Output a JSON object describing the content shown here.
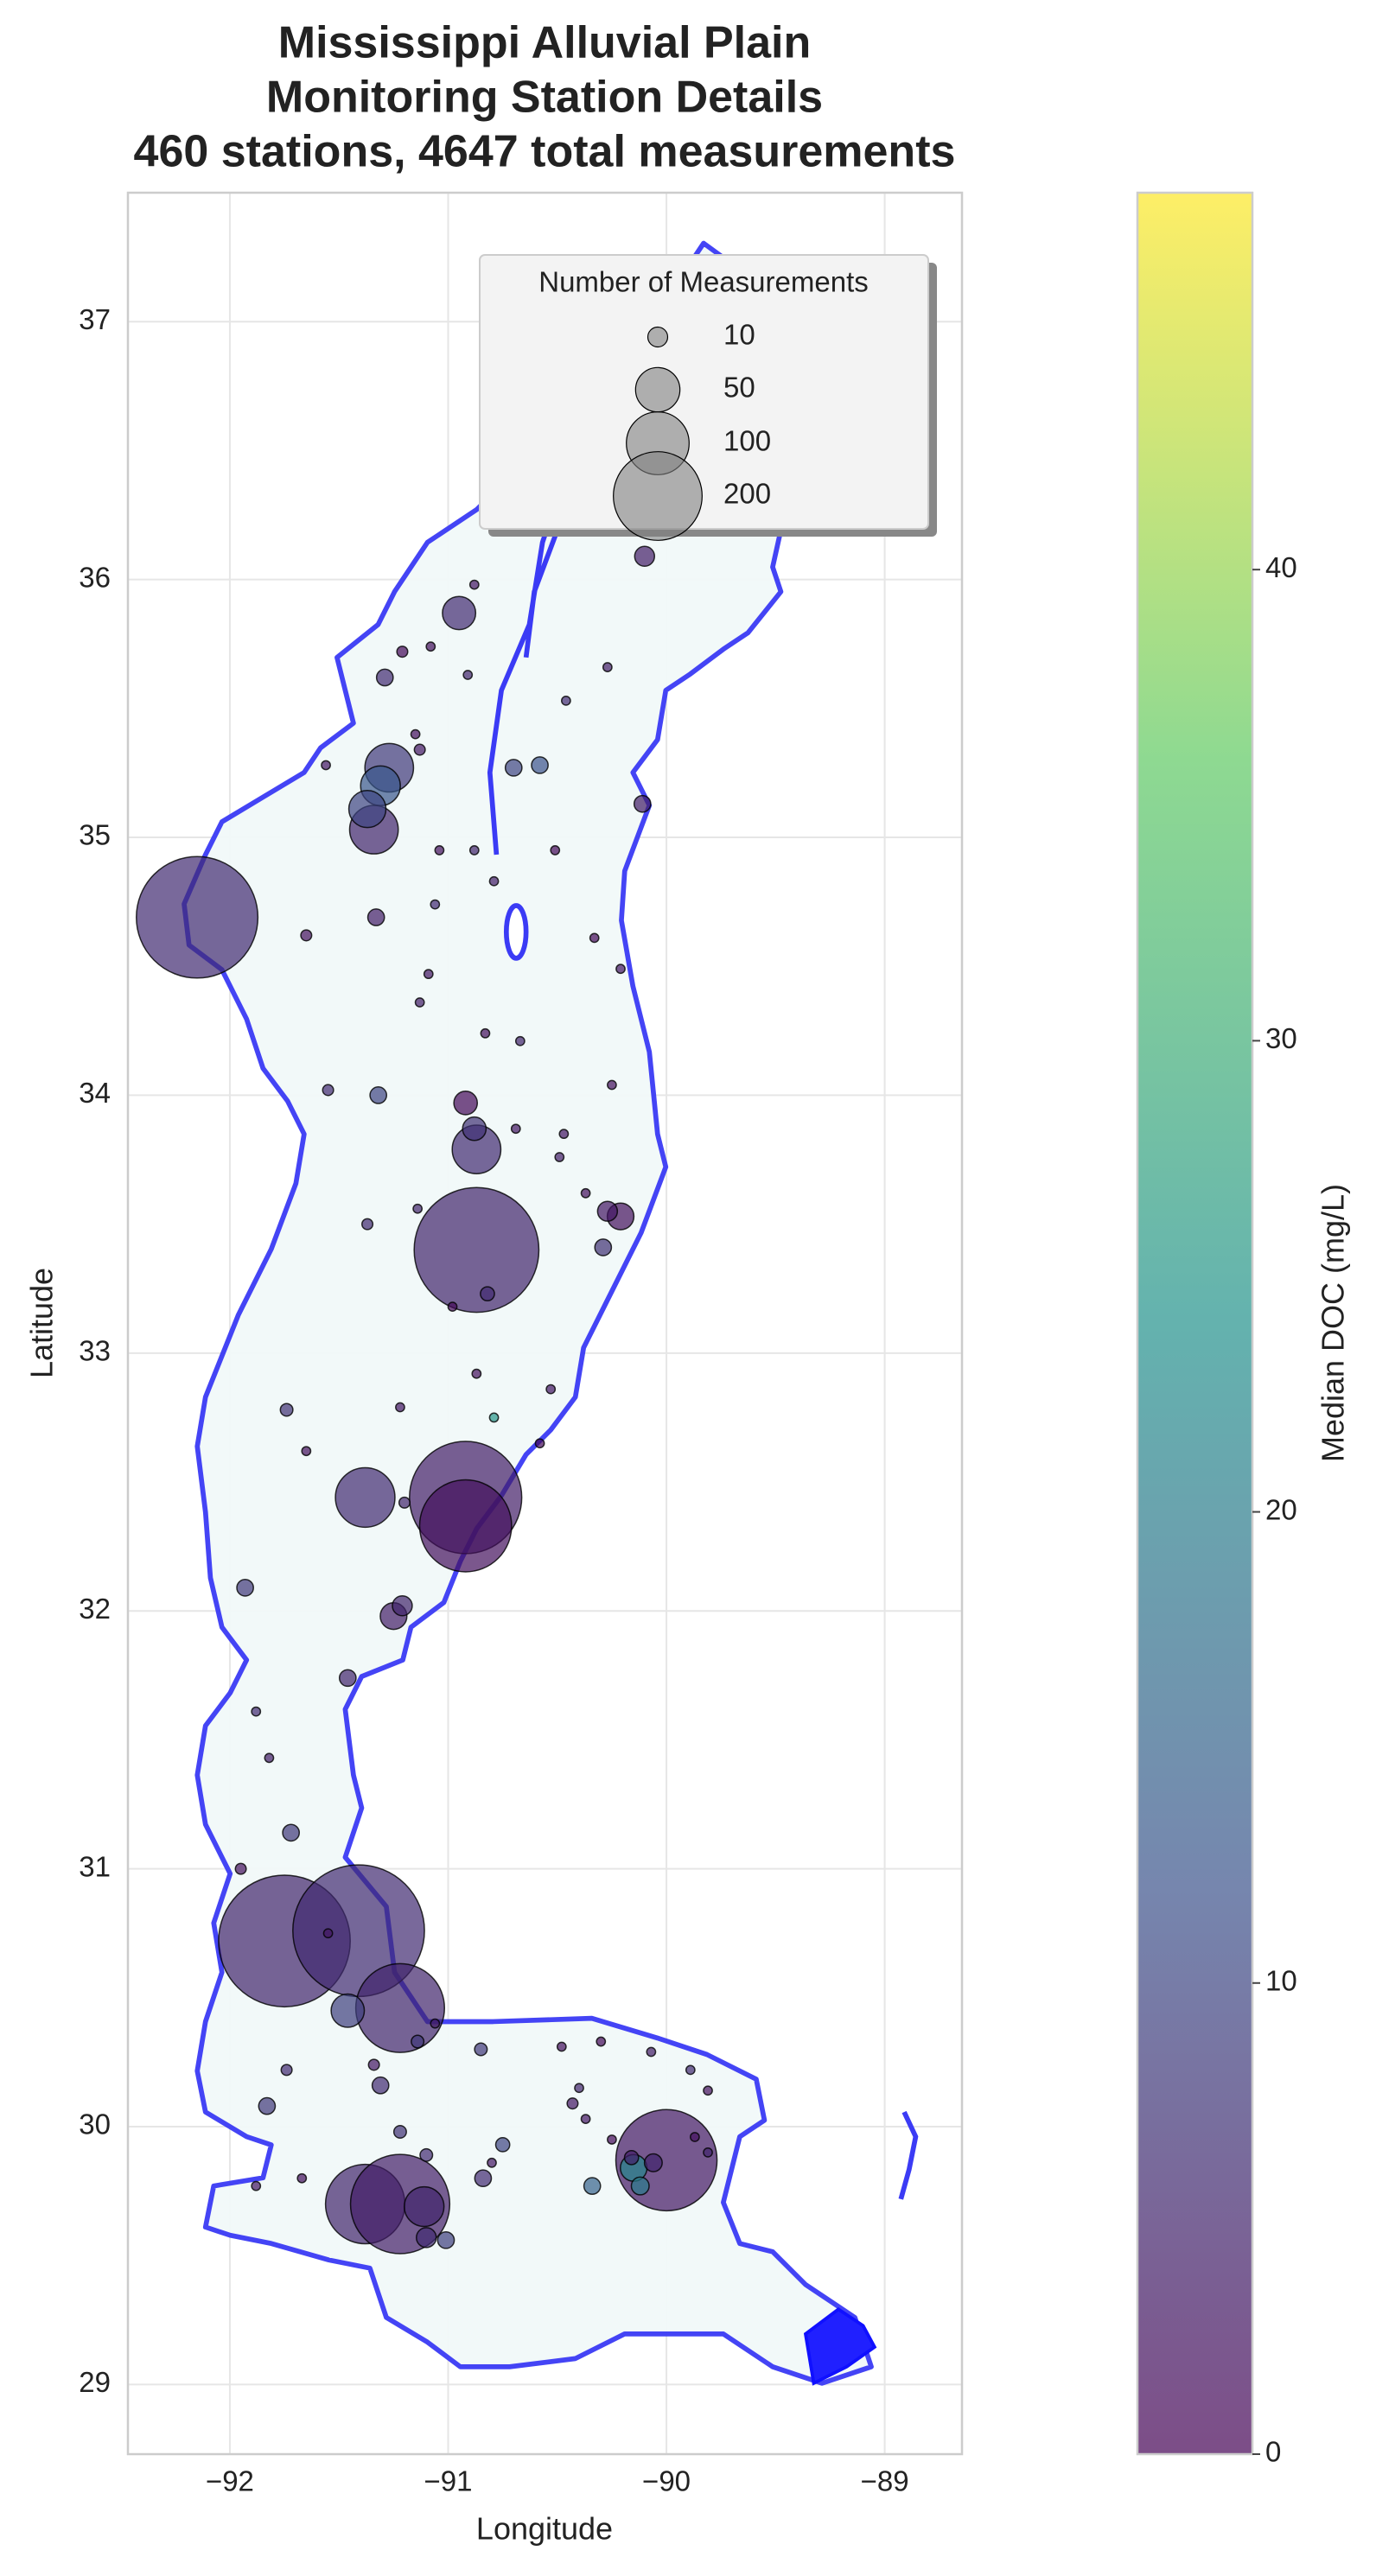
{
  "chart_data": {
    "type": "scatter",
    "title": [
      "Mississippi Alluvial Plain",
      "Monitoring Station Details",
      "460 stations, 4647 total measurements"
    ],
    "xlabel": "Longitude",
    "ylabel": "Latitude",
    "xlim": [
      -92.467,
      -88.646
    ],
    "ylim": [
      28.73,
      37.5
    ],
    "xticks": [
      {
        "value": -92,
        "label": "−92"
      },
      {
        "value": -91,
        "label": "−91"
      },
      {
        "value": -90,
        "label": "−90"
      },
      {
        "value": -89,
        "label": "−89"
      }
    ],
    "yticks": [
      29,
      30,
      31,
      32,
      33,
      34,
      35,
      36,
      37
    ],
    "grid": true,
    "edge_color": "#000000",
    "x": [
      -92.15,
      -90.87,
      -90.92,
      -90.92,
      -91.75,
      -91.41,
      -91.22,
      -91.38,
      -91.22,
      -90.0,
      -91.38,
      -91.34,
      -91.27,
      -91.31,
      -91.37,
      -90.87,
      -90.95,
      -91.11,
      -91.46,
      -90.88,
      -90.92,
      -90.15,
      -90.21,
      -90.27,
      -91.25,
      -91.21,
      -90.1,
      -90.7,
      -90.58,
      -90.11,
      -91.33,
      -91.32,
      -91.1,
      -91.01,
      -90.75,
      -90.84,
      -90.34,
      -91.83,
      -91.72,
      -91.93,
      -91.46,
      -91.31,
      -91.34,
      -91.22,
      -91.1,
      -91.29,
      -90.29,
      -90.79,
      -90.82,
      -91.74,
      -91.14,
      -90.85,
      -90.06,
      -90.12,
      -90.16,
      -90.88,
      -91.08,
      -90.91,
      -91.21,
      -90.27,
      -90.46,
      -91.15,
      -91.56,
      -91.13,
      -91.04,
      -90.88,
      -90.51,
      -90.79,
      -91.06,
      -91.65,
      -91.09,
      -90.21,
      -90.83,
      -90.67,
      -90.33,
      -91.13,
      -91.55,
      -90.25,
      -90.69,
      -90.47,
      -90.37,
      -91.14,
      -90.98,
      -90.49,
      -91.37,
      -90.87,
      -91.22,
      -90.53,
      -91.65,
      -91.2,
      -90.58,
      -91.82,
      -91.88,
      -91.95,
      -91.55,
      -90.8,
      -90.48,
      -90.4,
      -90.3,
      -90.07,
      -89.89,
      -89.81,
      -90.43,
      -90.37,
      -89.87,
      -89.81,
      -90.25,
      -91.06,
      -91.74,
      -91.67,
      -91.88
    ],
    "y": [
      34.69,
      33.4,
      32.44,
      32.33,
      30.72,
      30.76,
      30.46,
      29.7,
      29.7,
      29.87,
      32.44,
      35.03,
      35.27,
      35.2,
      35.11,
      33.79,
      35.87,
      29.69,
      30.45,
      33.87,
      33.97,
      29.84,
      33.53,
      33.55,
      31.98,
      32.02,
      36.09,
      35.27,
      35.28,
      35.13,
      34.69,
      34.0,
      29.57,
      29.56,
      29.93,
      29.8,
      29.77,
      30.08,
      31.14,
      32.09,
      31.74,
      30.16,
      30.24,
      29.98,
      29.89,
      35.62,
      33.41,
      32.75,
      33.23,
      32.78,
      30.33,
      30.3,
      29.86,
      29.77,
      29.88,
      35.98,
      35.74,
      35.63,
      35.72,
      35.66,
      35.53,
      35.4,
      35.28,
      35.34,
      34.95,
      34.95,
      34.95,
      34.83,
      34.74,
      34.62,
      34.47,
      34.49,
      34.24,
      34.21,
      34.61,
      34.36,
      34.02,
      34.04,
      33.87,
      33.85,
      33.62,
      33.56,
      33.18,
      33.76,
      33.5,
      32.92,
      32.79,
      32.86,
      32.62,
      32.42,
      32.65,
      31.43,
      31.61,
      31.0,
      30.75,
      29.86,
      30.31,
      30.15,
      30.33,
      30.29,
      30.22,
      30.14,
      30.09,
      30.03,
      29.96,
      29.9,
      29.95,
      30.4,
      30.22,
      29.8,
      29.77
    ],
    "sizes": [
      375,
      395,
      320,
      215,
      440,
      440,
      200,
      160,
      250,
      260,
      90,
      60,
      60,
      40,
      35,
      60,
      28,
      40,
      28,
      14,
      14,
      18,
      18,
      10,
      18,
      10,
      10,
      7,
      7,
      7,
      7,
      7,
      10,
      7,
      5,
      7,
      7,
      7,
      7,
      7,
      7,
      7,
      3,
      4,
      4,
      7,
      7,
      2,
      5,
      4,
      4,
      4,
      8,
      8,
      5,
      2,
      2,
      2,
      3,
      2,
      2,
      2,
      2,
      3,
      2,
      2,
      2,
      2,
      2,
      3,
      2,
      2,
      2,
      2,
      2,
      2,
      3,
      2,
      2,
      2,
      2,
      2,
      2,
      2,
      3,
      2,
      2,
      2,
      2,
      3,
      2,
      2,
      2,
      3,
      2,
      2,
      2,
      2,
      2,
      2,
      2,
      2,
      3,
      2,
      2,
      2,
      2,
      2,
      3,
      2,
      2
    ],
    "color_values": [
      6,
      5,
      4,
      2,
      5,
      6,
      5,
      5,
      4,
      3,
      6,
      5,
      8,
      13,
      10,
      6,
      6,
      5,
      9,
      7,
      1,
      22,
      2,
      3,
      4,
      5,
      4,
      10,
      12,
      4,
      4,
      10,
      6,
      9,
      10,
      6,
      15,
      8,
      8,
      8,
      5,
      6,
      3,
      7,
      6,
      6,
      7,
      25,
      6,
      7,
      8,
      8,
      5,
      20,
      4,
      3,
      2,
      5,
      1,
      4,
      6,
      2,
      3,
      3,
      2,
      5,
      1,
      4,
      6,
      2,
      3,
      3,
      2,
      5,
      1,
      4,
      6,
      2,
      3,
      3,
      2,
      5,
      1,
      4,
      6,
      2,
      3,
      3,
      2,
      5,
      1,
      4,
      6,
      2,
      3,
      3,
      2,
      5,
      1,
      4,
      6,
      2,
      3,
      3,
      2,
      5,
      1,
      4,
      6,
      2,
      3
    ],
    "colorbar": {
      "label": "Median DOC (mg/L)",
      "colormap": "viridis",
      "alpha": 0.7,
      "lim": [
        0,
        48
      ],
      "ticks": [
        0,
        10,
        20,
        30,
        40
      ]
    },
    "size_legend": {
      "title": "Number of Measurements",
      "values": [
        10,
        50,
        100,
        200
      ],
      "corner": "upper right"
    }
  }
}
